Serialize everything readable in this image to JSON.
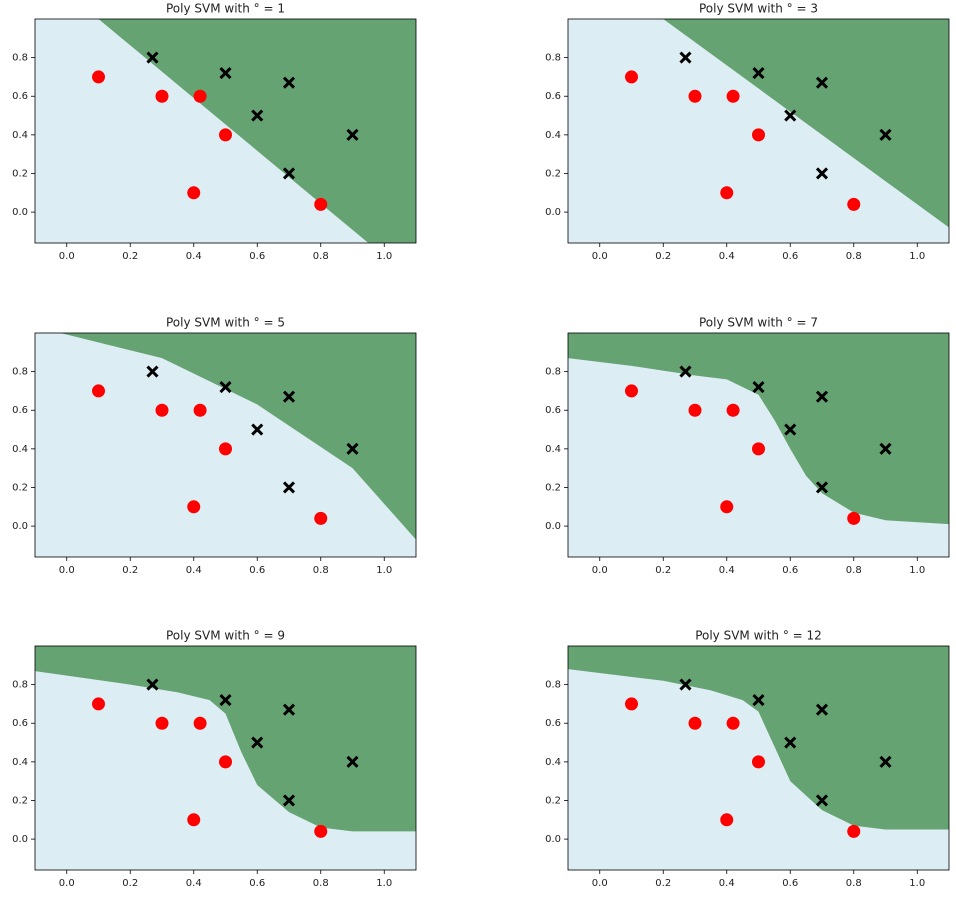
{
  "chart_data": [
    {
      "type": "scatter",
      "title": "Poly SVM with ° = 1",
      "region_colors": [
        "#ddedf4",
        "#66a372"
      ],
      "boundary_x": [
        0.1,
        0.95
      ],
      "boundary_y": [
        1.0,
        -0.16
      ],
      "series": [
        {
          "color": "#ff0000",
          "marker": "circle",
          "x": [
            0.1,
            0.3,
            0.42,
            0.5,
            0.4,
            0.8
          ],
          "y": [
            0.7,
            0.6,
            0.6,
            0.4,
            0.1,
            0.04
          ]
        },
        {
          "color": "#000000",
          "marker": "x",
          "x": [
            0.27,
            0.5,
            0.7,
            0.6,
            0.9,
            0.7
          ],
          "y": [
            0.8,
            0.72,
            0.67,
            0.5,
            0.4,
            0.2
          ]
        }
      ],
      "xlim": [
        -0.1,
        1.1
      ],
      "ylim": [
        -0.16,
        1.0
      ],
      "xticks": [
        {
          "value": 0,
          "label": "0.0"
        },
        {
          "value": 0.2,
          "label": "0.2"
        },
        {
          "value": 0.4,
          "label": "0.4"
        },
        {
          "value": 0.6,
          "label": "0.6"
        },
        {
          "value": 0.8,
          "label": "0.8"
        },
        {
          "value": 1,
          "label": "1.0"
        }
      ],
      "yticks": [
        {
          "value": 0,
          "label": "0.0"
        },
        {
          "value": 0.2,
          "label": "0.2"
        },
        {
          "value": 0.4,
          "label": "0.4"
        },
        {
          "value": 0.6,
          "label": "0.6"
        },
        {
          "value": 0.8,
          "label": "0.8"
        }
      ]
    },
    {
      "type": "scatter",
      "title": "Poly SVM with ° = 3",
      "region_colors": [
        "#ddedf4",
        "#66a372"
      ],
      "boundary_x": [
        0.2,
        1.1
      ],
      "boundary_y": [
        1.0,
        -0.08
      ],
      "series": [
        {
          "color": "#ff0000",
          "marker": "circle",
          "x": [
            0.1,
            0.3,
            0.42,
            0.5,
            0.4,
            0.8
          ],
          "y": [
            0.7,
            0.6,
            0.6,
            0.4,
            0.1,
            0.04
          ]
        },
        {
          "color": "#000000",
          "marker": "x",
          "x": [
            0.27,
            0.5,
            0.7,
            0.6,
            0.9,
            0.7
          ],
          "y": [
            0.8,
            0.72,
            0.67,
            0.5,
            0.4,
            0.2
          ]
        }
      ],
      "xlim": [
        -0.1,
        1.1
      ],
      "ylim": [
        -0.16,
        1.0
      ],
      "xticks": [
        {
          "value": 0,
          "label": "0.0"
        },
        {
          "value": 0.2,
          "label": "0.2"
        },
        {
          "value": 0.4,
          "label": "0.4"
        },
        {
          "value": 0.6,
          "label": "0.6"
        },
        {
          "value": 0.8,
          "label": "0.8"
        },
        {
          "value": 1,
          "label": "1.0"
        }
      ],
      "yticks": [
        {
          "value": 0,
          "label": "0.0"
        },
        {
          "value": 0.2,
          "label": "0.2"
        },
        {
          "value": 0.4,
          "label": "0.4"
        },
        {
          "value": 0.6,
          "label": "0.6"
        },
        {
          "value": 0.8,
          "label": "0.8"
        }
      ]
    },
    {
      "type": "scatter",
      "title": "Poly SVM with ° = 5",
      "region_colors": [
        "#ddedf4",
        "#66a372"
      ],
      "boundary_x": [
        -0.02,
        0.3,
        0.6,
        0.9,
        1.1
      ],
      "boundary_y": [
        1.0,
        0.87,
        0.63,
        0.3,
        -0.07
      ],
      "series": [
        {
          "color": "#ff0000",
          "marker": "circle",
          "x": [
            0.1,
            0.3,
            0.42,
            0.5,
            0.4,
            0.8
          ],
          "y": [
            0.7,
            0.6,
            0.6,
            0.4,
            0.1,
            0.04
          ]
        },
        {
          "color": "#000000",
          "marker": "x",
          "x": [
            0.27,
            0.5,
            0.7,
            0.6,
            0.9,
            0.7
          ],
          "y": [
            0.8,
            0.72,
            0.67,
            0.5,
            0.4,
            0.2
          ]
        }
      ],
      "xlim": [
        -0.1,
        1.1
      ],
      "ylim": [
        -0.16,
        1.0
      ],
      "xticks": [
        {
          "value": 0,
          "label": "0.0"
        },
        {
          "value": 0.2,
          "label": "0.2"
        },
        {
          "value": 0.4,
          "label": "0.4"
        },
        {
          "value": 0.6,
          "label": "0.6"
        },
        {
          "value": 0.8,
          "label": "0.8"
        },
        {
          "value": 1,
          "label": "1.0"
        }
      ],
      "yticks": [
        {
          "value": 0,
          "label": "0.0"
        },
        {
          "value": 0.2,
          "label": "0.2"
        },
        {
          "value": 0.4,
          "label": "0.4"
        },
        {
          "value": 0.6,
          "label": "0.6"
        },
        {
          "value": 0.8,
          "label": "0.8"
        }
      ]
    },
    {
      "type": "scatter",
      "title": "Poly SVM with ° = 7",
      "region_colors": [
        "#ddedf4",
        "#66a372"
      ],
      "boundary_x": [
        -0.1,
        0.1,
        0.3,
        0.4,
        0.5,
        0.55,
        0.6,
        0.65,
        0.7,
        0.8,
        0.9,
        1.1
      ],
      "boundary_y": [
        0.87,
        0.83,
        0.78,
        0.76,
        0.68,
        0.55,
        0.4,
        0.26,
        0.17,
        0.07,
        0.03,
        0.01
      ],
      "series": [
        {
          "color": "#ff0000",
          "marker": "circle",
          "x": [
            0.1,
            0.3,
            0.42,
            0.5,
            0.4,
            0.8
          ],
          "y": [
            0.7,
            0.6,
            0.6,
            0.4,
            0.1,
            0.04
          ]
        },
        {
          "color": "#000000",
          "marker": "x",
          "x": [
            0.27,
            0.5,
            0.7,
            0.6,
            0.9,
            0.7
          ],
          "y": [
            0.8,
            0.72,
            0.67,
            0.5,
            0.4,
            0.2
          ]
        }
      ],
      "xlim": [
        -0.1,
        1.1
      ],
      "ylim": [
        -0.16,
        1.0
      ],
      "xticks": [
        {
          "value": 0,
          "label": "0.0"
        },
        {
          "value": 0.2,
          "label": "0.2"
        },
        {
          "value": 0.4,
          "label": "0.4"
        },
        {
          "value": 0.6,
          "label": "0.6"
        },
        {
          "value": 0.8,
          "label": "0.8"
        },
        {
          "value": 1,
          "label": "1.0"
        }
      ],
      "yticks": [
        {
          "value": 0,
          "label": "0.0"
        },
        {
          "value": 0.2,
          "label": "0.2"
        },
        {
          "value": 0.4,
          "label": "0.4"
        },
        {
          "value": 0.6,
          "label": "0.6"
        },
        {
          "value": 0.8,
          "label": "0.8"
        }
      ]
    },
    {
      "type": "scatter",
      "title": "Poly SVM with ° = 9",
      "region_colors": [
        "#ddedf4",
        "#66a372"
      ],
      "boundary_x": [
        -0.1,
        0.2,
        0.35,
        0.45,
        0.5,
        0.55,
        0.6,
        0.7,
        0.8,
        0.9,
        1.1
      ],
      "boundary_y": [
        0.87,
        0.8,
        0.76,
        0.72,
        0.65,
        0.45,
        0.28,
        0.14,
        0.06,
        0.04,
        0.04
      ],
      "series": [
        {
          "color": "#ff0000",
          "marker": "circle",
          "x": [
            0.1,
            0.3,
            0.42,
            0.5,
            0.4,
            0.8
          ],
          "y": [
            0.7,
            0.6,
            0.6,
            0.4,
            0.1,
            0.04
          ]
        },
        {
          "color": "#000000",
          "marker": "x",
          "x": [
            0.27,
            0.5,
            0.7,
            0.6,
            0.9,
            0.7
          ],
          "y": [
            0.8,
            0.72,
            0.67,
            0.5,
            0.4,
            0.2
          ]
        }
      ],
      "xlim": [
        -0.1,
        1.1
      ],
      "ylim": [
        -0.16,
        1.0
      ],
      "xticks": [
        {
          "value": 0,
          "label": "0.0"
        },
        {
          "value": 0.2,
          "label": "0.2"
        },
        {
          "value": 0.4,
          "label": "0.4"
        },
        {
          "value": 0.6,
          "label": "0.6"
        },
        {
          "value": 0.8,
          "label": "0.8"
        },
        {
          "value": 1,
          "label": "1.0"
        }
      ],
      "yticks": [
        {
          "value": 0,
          "label": "0.0"
        },
        {
          "value": 0.2,
          "label": "0.2"
        },
        {
          "value": 0.4,
          "label": "0.4"
        },
        {
          "value": 0.6,
          "label": "0.6"
        },
        {
          "value": 0.8,
          "label": "0.8"
        }
      ]
    },
    {
      "type": "scatter",
      "title": "Poly SVM with ° = 12",
      "region_colors": [
        "#ddedf4",
        "#66a372"
      ],
      "boundary_x": [
        -0.1,
        0.2,
        0.35,
        0.45,
        0.5,
        0.55,
        0.6,
        0.7,
        0.8,
        0.9,
        1.1
      ],
      "boundary_y": [
        0.88,
        0.82,
        0.77,
        0.72,
        0.66,
        0.48,
        0.3,
        0.15,
        0.07,
        0.05,
        0.05
      ],
      "series": [
        {
          "color": "#ff0000",
          "marker": "circle",
          "x": [
            0.1,
            0.3,
            0.42,
            0.5,
            0.4,
            0.8
          ],
          "y": [
            0.7,
            0.6,
            0.6,
            0.4,
            0.1,
            0.04
          ]
        },
        {
          "color": "#000000",
          "marker": "x",
          "x": [
            0.27,
            0.5,
            0.7,
            0.6,
            0.9,
            0.7
          ],
          "y": [
            0.8,
            0.72,
            0.67,
            0.5,
            0.4,
            0.2
          ]
        }
      ],
      "xlim": [
        -0.1,
        1.1
      ],
      "ylim": [
        -0.16,
        1.0
      ],
      "xticks": [
        {
          "value": 0,
          "label": "0.0"
        },
        {
          "value": 0.2,
          "label": "0.2"
        },
        {
          "value": 0.4,
          "label": "0.4"
        },
        {
          "value": 0.6,
          "label": "0.6"
        },
        {
          "value": 0.8,
          "label": "0.8"
        },
        {
          "value": 1,
          "label": "1.0"
        }
      ],
      "yticks": [
        {
          "value": 0,
          "label": "0.0"
        },
        {
          "value": 0.2,
          "label": "0.2"
        },
        {
          "value": 0.4,
          "label": "0.4"
        },
        {
          "value": 0.6,
          "label": "0.6"
        },
        {
          "value": 0.8,
          "label": "0.8"
        }
      ]
    }
  ]
}
